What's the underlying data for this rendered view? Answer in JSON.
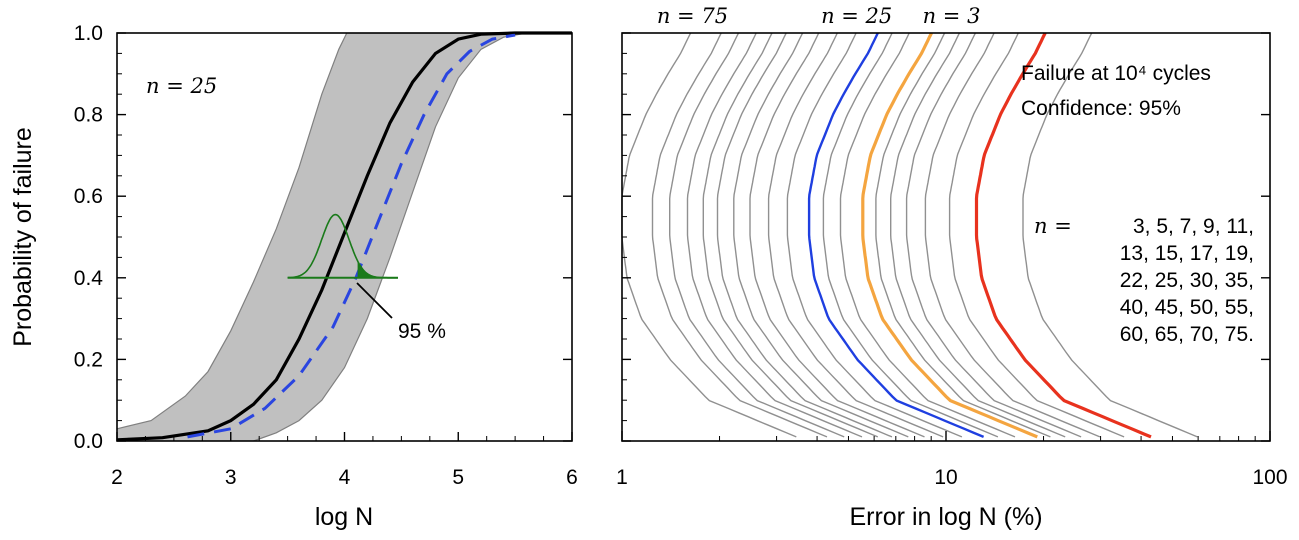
{
  "chart_data": [
    {
      "type": "line",
      "title": "",
      "xlabel": "log N",
      "ylabel": "Probability of failure",
      "xlim": [
        2,
        6
      ],
      "ylim": [
        0,
        1
      ],
      "xticks": [
        2,
        3,
        4,
        5,
        6
      ],
      "yticks": [
        0.0,
        0.2,
        0.4,
        0.6,
        0.8,
        1.0
      ],
      "xtick_labels": [
        "2",
        "3",
        "4",
        "5",
        "6"
      ],
      "ytick_labels": [
        "0.0",
        "0.2",
        "0.4",
        "0.6",
        "0.8",
        "1.0"
      ],
      "grid": false,
      "annotation_n": "n = 25",
      "annotation_pct": "95 %",
      "band": {
        "color": "#c0c0c0",
        "edge": "#808080",
        "upper": [
          [
            2.0,
            0.03
          ],
          [
            2.3,
            0.05
          ],
          [
            2.6,
            0.11
          ],
          [
            2.8,
            0.17
          ],
          [
            3.0,
            0.27
          ],
          [
            3.2,
            0.39
          ],
          [
            3.4,
            0.52
          ],
          [
            3.6,
            0.67
          ],
          [
            3.8,
            0.85
          ],
          [
            3.95,
            0.96
          ],
          [
            4.02,
            1.0
          ]
        ],
        "lower": [
          [
            3.2,
            0.0
          ],
          [
            3.4,
            0.02
          ],
          [
            3.6,
            0.05
          ],
          [
            3.8,
            0.1
          ],
          [
            4.0,
            0.18
          ],
          [
            4.2,
            0.3
          ],
          [
            4.4,
            0.45
          ],
          [
            4.6,
            0.61
          ],
          [
            4.8,
            0.77
          ],
          [
            5.0,
            0.89
          ],
          [
            5.2,
            0.96
          ],
          [
            5.4,
            0.99
          ],
          [
            5.6,
            1.0
          ],
          [
            6.0,
            1.0
          ]
        ]
      },
      "series": [
        {
          "style": "solid",
          "color": "#000000",
          "points": [
            [
              2.0,
              0.003
            ],
            [
              2.4,
              0.008
            ],
            [
              2.8,
              0.025
            ],
            [
              3.0,
              0.05
            ],
            [
              3.2,
              0.09
            ],
            [
              3.4,
              0.15
            ],
            [
              3.6,
              0.25
            ],
            [
              3.8,
              0.37
            ],
            [
              4.0,
              0.51
            ],
            [
              4.2,
              0.65
            ],
            [
              4.4,
              0.78
            ],
            [
              4.6,
              0.88
            ],
            [
              4.8,
              0.95
            ],
            [
              5.0,
              0.985
            ],
            [
              5.2,
              0.997
            ],
            [
              5.5,
              1.0
            ],
            [
              6.0,
              1.0
            ]
          ]
        },
        {
          "style": "dashed",
          "color": "#2a45e0",
          "points": [
            [
              2.62,
              0.01
            ],
            [
              3.0,
              0.03
            ],
            [
              3.3,
              0.08
            ],
            [
              3.6,
              0.16
            ],
            [
              3.9,
              0.28
            ],
            [
              4.1,
              0.4
            ],
            [
              4.3,
              0.54
            ],
            [
              4.5,
              0.68
            ],
            [
              4.7,
              0.8
            ],
            [
              4.9,
              0.9
            ],
            [
              5.1,
              0.955
            ],
            [
              5.3,
              0.985
            ],
            [
              5.5,
              0.995
            ]
          ]
        }
      ],
      "distribution": {
        "color": "#1a7a1a",
        "baseline_y": 0.4,
        "x_start": 3.5,
        "x_end": 4.47,
        "peak_x": 3.92,
        "peak_height": 0.155,
        "sigma": 0.12,
        "shade_from_x": 4.12
      }
    },
    {
      "type": "line",
      "title": "",
      "xlabel": "Error in log N (%)",
      "ylabel": "",
      "xscale": "log",
      "xlim": [
        1,
        100
      ],
      "ylim": [
        0,
        1
      ],
      "xticks": [
        1,
        10,
        100
      ],
      "xtick_labels": [
        "1",
        "10",
        "100"
      ],
      "grid": false,
      "top_labels": [
        {
          "text": "n = 75",
          "x": 1.65
        },
        {
          "text": "n = 25",
          "x": 5.3
        },
        {
          "text": "n = 3",
          "x": 10.4
        }
      ],
      "info_text": [
        "Failure at 10⁴ cycles",
        "Confidence: 95%"
      ],
      "n_list_prefix": "n =",
      "n_list_lines": [
        "3, 5, 7, 9, 11,",
        "13, 15, 17, 19,",
        "22, 25, 30, 35,",
        "40, 45, 50, 55,",
        "60, 65, 70, 75."
      ],
      "curve_shape": [
        [
          0.0,
          1.0
        ],
        [
          0.1,
          0.5
        ],
        [
          0.2,
          0.38
        ],
        [
          0.3,
          0.31
        ],
        [
          0.4,
          0.28
        ],
        [
          0.5,
          0.27
        ],
        [
          0.6,
          0.27
        ],
        [
          0.7,
          0.285
        ],
        [
          0.8,
          0.32
        ],
        [
          0.85,
          0.345
        ],
        [
          0.9,
          0.375
        ],
        [
          0.95,
          0.41
        ],
        [
          1.0,
          0.44
        ]
      ],
      "curve_shape_note": "y = probability, value = error relative to error at p=0 (bottom), in log-shape fractions",
      "curves": [
        {
          "n": 3,
          "bottom_error": 64,
          "color": "#909090",
          "width": 1.4
        },
        {
          "n": 5,
          "bottom_error": 46,
          "color": "#e8321e",
          "width": 3.2
        },
        {
          "n": 7,
          "bottom_error": 38,
          "color": "#909090",
          "width": 1.4
        },
        {
          "n": 9,
          "bottom_error": 32,
          "color": "#909090",
          "width": 1.4
        },
        {
          "n": 11,
          "bottom_error": 28,
          "color": "#909090",
          "width": 1.4
        },
        {
          "n": 13,
          "bottom_error": 25,
          "color": "#909090",
          "width": 1.4
        },
        {
          "n": 15,
          "bottom_error": 22.5,
          "color": "#909090",
          "width": 1.4
        },
        {
          "n": 17,
          "bottom_error": 20.5,
          "color": "#f4a540",
          "width": 3.2
        },
        {
          "n": 19,
          "bottom_error": 17.5,
          "color": "#909090",
          "width": 1.4
        },
        {
          "n": 22,
          "bottom_error": 15.5,
          "color": "#909090",
          "width": 1.4
        },
        {
          "n": 25,
          "bottom_error": 14,
          "color": "#1f3fe0",
          "width": 2.4
        },
        {
          "n": 30,
          "bottom_error": 12,
          "color": "#909090",
          "width": 1.4
        },
        {
          "n": 35,
          "bottom_error": 10.5,
          "color": "#909090",
          "width": 1.4
        },
        {
          "n": 40,
          "bottom_error": 9.2,
          "color": "#909090",
          "width": 1.4
        },
        {
          "n": 45,
          "bottom_error": 8.2,
          "color": "#909090",
          "width": 1.4
        },
        {
          "n": 50,
          "bottom_error": 7.3,
          "color": "#909090",
          "width": 1.4
        },
        {
          "n": 55,
          "bottom_error": 6.6,
          "color": "#909090",
          "width": 1.4
        },
        {
          "n": 60,
          "bottom_error": 5.9,
          "color": "#909090",
          "width": 1.4
        },
        {
          "n": 65,
          "bottom_error": 5.2,
          "color": "#909090",
          "width": 1.4
        },
        {
          "n": 70,
          "bottom_error": 4.6,
          "color": "#909090",
          "width": 1.4
        },
        {
          "n": 75,
          "bottom_error": 3.7,
          "color": "#909090",
          "width": 1.4
        }
      ]
    }
  ]
}
